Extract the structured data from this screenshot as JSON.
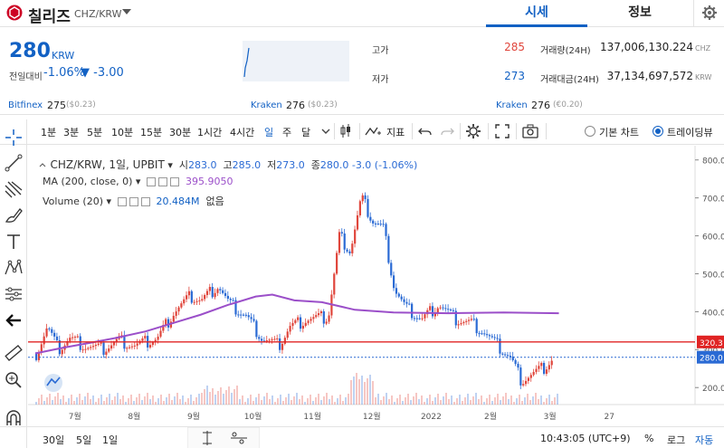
{
  "header": {
    "coin_name": "칠리즈",
    "pair": "CHZ/KRW",
    "tabs": [
      {
        "label": "시세"
      },
      {
        "label": "정보"
      }
    ]
  },
  "price": {
    "value": "280",
    "unit": "KRW",
    "change_label": "전일대비",
    "change_pct": "-1.06%",
    "change_val": "▼ -3.00"
  },
  "stats": {
    "high_label": "고가",
    "high": "285",
    "low_label": "저가",
    "low": "273",
    "volume_label": "거래량(24H)",
    "volume": "137,006,130.224",
    "volume_unit": "CHZ",
    "amount_label": "거래대금(24H)",
    "amount": "37,134,697,572",
    "amount_unit": "KRW"
  },
  "exchanges": [
    {
      "name": "Bitfinex",
      "price": "275",
      "sub": "($0.23)"
    },
    {
      "name": "Kraken",
      "price": "276",
      "sub": "($0.23)"
    },
    {
      "name": "Kraken",
      "price": "276",
      "sub": "(€0.20)"
    }
  ],
  "toolbar": {
    "intervals": [
      "1분",
      "3분",
      "5분",
      "10분",
      "15분",
      "30분",
      "1시간",
      "4시간",
      "일",
      "주",
      "달"
    ],
    "active_interval": "일",
    "indicators_label": "지표",
    "basic_chart_label": "기본 차트",
    "tradingview_label": "트레이딩뷰"
  },
  "chart_legend": {
    "symbol": "CHZ/KRW, 1일, UPBIT",
    "open_label": "시",
    "open": "283.0",
    "high_label": "고",
    "high": "285.0",
    "low_label": "저",
    "low": "273.0",
    "close_label": "종",
    "close": "280.0",
    "change": "-3.0 (-1.06%)",
    "ma_label": "MA (200, close, 0)",
    "ma_value": "395.9050",
    "volume_label": "Volume (20)",
    "volume_value": "20.484M",
    "volume_none": "없음"
  },
  "colors": {
    "up": "#e0463c",
    "down": "#2a6ad4",
    "ma": "#9b4fc9",
    "hline": "#e02424",
    "accent": "#1261c4"
  },
  "chart_data": {
    "type": "candlestick",
    "x": [
      "7월",
      "8월",
      "9월",
      "10월",
      "11월",
      "12월",
      "2022",
      "2월",
      "3월",
      "27"
    ],
    "y_ticks": [
      200,
      300,
      400,
      500,
      600,
      700,
      800
    ],
    "ylim": [
      160,
      815
    ],
    "close_marker": 280.0,
    "hline_marker": 320.3,
    "ma_series": [
      {
        "t": 0.0,
        "v": 290
      },
      {
        "t": 0.05,
        "v": 305
      },
      {
        "t": 0.1,
        "v": 318
      },
      {
        "t": 0.15,
        "v": 332
      },
      {
        "t": 0.2,
        "v": 348
      },
      {
        "t": 0.25,
        "v": 370
      },
      {
        "t": 0.3,
        "v": 392
      },
      {
        "t": 0.35,
        "v": 418
      },
      {
        "t": 0.4,
        "v": 440
      },
      {
        "t": 0.43,
        "v": 445
      },
      {
        "t": 0.47,
        "v": 430
      },
      {
        "t": 0.52,
        "v": 425
      },
      {
        "t": 0.58,
        "v": 405
      },
      {
        "t": 0.65,
        "v": 398
      },
      {
        "t": 0.75,
        "v": 396
      },
      {
        "t": 0.85,
        "v": 398
      },
      {
        "t": 0.95,
        "v": 396
      }
    ],
    "price_series": [
      {
        "t": 0.0,
        "v": 290
      },
      {
        "t": 0.02,
        "v": 360
      },
      {
        "t": 0.04,
        "v": 300
      },
      {
        "t": 0.06,
        "v": 330
      },
      {
        "t": 0.09,
        "v": 310
      },
      {
        "t": 0.12,
        "v": 300
      },
      {
        "t": 0.15,
        "v": 325
      },
      {
        "t": 0.18,
        "v": 310
      },
      {
        "t": 0.22,
        "v": 330
      },
      {
        "t": 0.25,
        "v": 400
      },
      {
        "t": 0.28,
        "v": 440
      },
      {
        "t": 0.3,
        "v": 430
      },
      {
        "t": 0.33,
        "v": 470
      },
      {
        "t": 0.35,
        "v": 420
      },
      {
        "t": 0.38,
        "v": 390
      },
      {
        "t": 0.41,
        "v": 330
      },
      {
        "t": 0.44,
        "v": 310
      },
      {
        "t": 0.46,
        "v": 360
      },
      {
        "t": 0.49,
        "v": 380
      },
      {
        "t": 0.53,
        "v": 385
      },
      {
        "t": 0.55,
        "v": 600
      },
      {
        "t": 0.57,
        "v": 560
      },
      {
        "t": 0.59,
        "v": 700
      },
      {
        "t": 0.61,
        "v": 640
      },
      {
        "t": 0.63,
        "v": 620
      },
      {
        "t": 0.65,
        "v": 460
      },
      {
        "t": 0.67,
        "v": 410
      },
      {
        "t": 0.7,
        "v": 380
      },
      {
        "t": 0.73,
        "v": 420
      },
      {
        "t": 0.76,
        "v": 380
      },
      {
        "t": 0.79,
        "v": 370
      },
      {
        "t": 0.81,
        "v": 350
      },
      {
        "t": 0.83,
        "v": 320
      },
      {
        "t": 0.86,
        "v": 280
      },
      {
        "t": 0.88,
        "v": 220
      },
      {
        "t": 0.9,
        "v": 235
      },
      {
        "t": 0.92,
        "v": 250
      },
      {
        "t": 0.94,
        "v": 280
      }
    ]
  },
  "bottom": {
    "ranges": [
      "30일",
      "5일",
      "1일"
    ],
    "time": "10:43:05 (UTC+9)",
    "percent": "%",
    "log": "로그",
    "auto": "자동"
  }
}
